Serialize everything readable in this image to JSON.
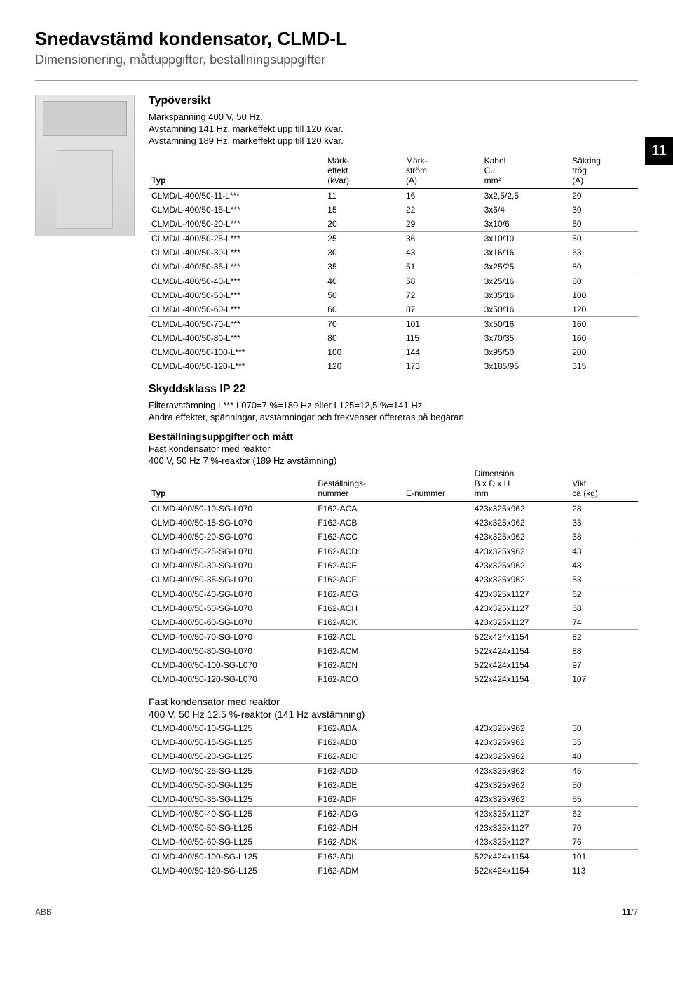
{
  "title": "Snedavstämd kondensator, CLMD-L",
  "subtitle": "Dimensionering, måttuppgifter, beställningsuppgifter",
  "overview_heading": "Typöversikt",
  "overview_lines": [
    "Märkspänning 400 V, 50 Hz.",
    "Avstämning 141 Hz, märkeffekt upp till 120 kvar.",
    "Avstämning 189 Hz, märkeffekt upp till 120 kvar."
  ],
  "chapter": "11",
  "table1": {
    "headers": {
      "c1a": "",
      "c1b": "",
      "c1c": "Typ",
      "c2a": "Märk-",
      "c2b": "effekt",
      "c2c": "(kvar)",
      "c3a": "Märk-",
      "c3b": "ström",
      "c3c": "(A)",
      "c4a": "Kabel",
      "c4b": "Cu",
      "c4c": "mm²",
      "c5a": "Säkring",
      "c5b": "trög",
      "c5c": "(A)"
    },
    "groups": [
      [
        [
          "CLMD/L-400/50-11-L***",
          "11",
          "16",
          "3x2,5/2,5",
          "20"
        ],
        [
          "CLMD/L-400/50-15-L***",
          "15",
          "22",
          "3x6/4",
          "30"
        ],
        [
          "CLMD/L-400/50-20-L***",
          "20",
          "29",
          "3x10/6",
          "50"
        ]
      ],
      [
        [
          "CLMD/L-400/50-25-L***",
          "25",
          "36",
          "3x10/10",
          "50"
        ],
        [
          "CLMD/L-400/50-30-L***",
          "30",
          "43",
          "3x16/16",
          "63"
        ],
        [
          "CLMD/L-400/50-35-L***",
          "35",
          "51",
          "3x25/25",
          "80"
        ]
      ],
      [
        [
          "CLMD/L-400/50-40-L***",
          "40",
          "58",
          "3x25/16",
          "80"
        ],
        [
          "CLMD/L-400/50-50-L***",
          "50",
          "72",
          "3x35/16",
          "100"
        ],
        [
          "CLMD/L-400/50-60-L***",
          "60",
          "87",
          "3x50/16",
          "120"
        ]
      ],
      [
        [
          "CLMD/L-400/50-70-L***",
          "70",
          "101",
          "3x50/16",
          "160"
        ],
        [
          "CLMD/L-400/50-80-L***",
          "80",
          "115",
          "3x70/35",
          "160"
        ],
        [
          "CLMD/L-400/50-100-L***",
          "100",
          "144",
          "3x95/50",
          "200"
        ],
        [
          "CLMD/L-400/50-120-L***",
          "120",
          "173",
          "3x185/95",
          "315"
        ]
      ]
    ]
  },
  "ip_heading": "Skyddsklass IP 22",
  "ip_line1": "Filteravstämning L*** L070=7 %=189 Hz eller L125=12,5 %=141 Hz",
  "ip_line2": "Andra effekter, spänningar, avstämningar och frekvenser offereras på begäran.",
  "order_heading": "Beställningsuppgifter och mått",
  "order_sub1": "Fast kondensator med reaktor",
  "order_sub2": "400 V, 50 Hz 7 %-reaktor (189 Hz avstämning)",
  "table2": {
    "headers": {
      "c1a": "",
      "c1b": "",
      "c1c": "Typ",
      "c2a": "",
      "c2b": "Beställnings-",
      "c2c": "nummer",
      "c3a": "",
      "c3b": "",
      "c3c": "E-nummer",
      "c4a": "Dimension",
      "c4b": "B x D x H",
      "c4c": "mm",
      "c5a": "",
      "c5b": "Vikt",
      "c5c": "ca (kg)"
    },
    "groups": [
      [
        [
          "CLMD-400/50-10-SG-L070",
          "F162-ACA",
          "",
          "423x325x962",
          "28"
        ],
        [
          "CLMD-400/50-15-SG-L070",
          "F162-ACB",
          "",
          "423x325x962",
          "33"
        ],
        [
          "CLMD-400/50-20-SG-L070",
          "F162-ACC",
          "",
          "423x325x962",
          "38"
        ]
      ],
      [
        [
          "CLMD-400/50-25-SG-L070",
          "F162-ACD",
          "",
          "423x325x962",
          "43"
        ],
        [
          "CLMD-400/50-30-SG-L070",
          "F162-ACE",
          "",
          "423x325x962",
          "48"
        ],
        [
          "CLMD-400/50-35-SG-L070",
          "F162-ACF",
          "",
          "423x325x962",
          "53"
        ]
      ],
      [
        [
          "CLMD-400/50-40-SG-L070",
          "F162-ACG",
          "",
          "423x325x1127",
          "62"
        ],
        [
          "CLMD-400/50-50-SG-L070",
          "F162-ACH",
          "",
          "423x325x1127",
          "68"
        ],
        [
          "CLMD-400/50-60-SG-L070",
          "F162-ACK",
          "",
          "423x325x1127",
          "74"
        ]
      ],
      [
        [
          "CLMD-400/50-70-SG-L070",
          "F162-ACL",
          "",
          "522x424x1154",
          "82"
        ],
        [
          "CLMD-400/50-80-SG-L070",
          "F162-ACM",
          "",
          "522x424x1154",
          "88"
        ],
        [
          "CLMD-400/50-100-SG-L070",
          "F162-ACN",
          "",
          "522x424x1154",
          "97"
        ],
        [
          "CLMD-400/50-120-SG-L070",
          "F162-ACO",
          "",
          "522x424x1154",
          "107"
        ]
      ]
    ]
  },
  "order2_sub1": "Fast kondensator med reaktor",
  "order2_sub2": "400 V, 50 Hz 12.5 %-reaktor (141 Hz avstämning)",
  "table3": {
    "groups": [
      [
        [
          "CLMD-400/50-10-SG-L125",
          "F162-ADA",
          "",
          "423x325x962",
          "30"
        ],
        [
          "CLMD-400/50-15-SG-L125",
          "F162-ADB",
          "",
          "423x325x962",
          "35"
        ],
        [
          "CLMD-400/50-20-SG-L125",
          "F162-ADC",
          "",
          "423x325x962",
          "40"
        ]
      ],
      [
        [
          "CLMD-400/50-25-SG-L125",
          "F162-ADD",
          "",
          "423x325x962",
          "45"
        ],
        [
          "CLMD-400/50-30-SG-L125",
          "F162-ADE",
          "",
          "423x325x962",
          "50"
        ],
        [
          "CLMD-400/50-35-SG-L125",
          "F162-ADF",
          "",
          "423x325x962",
          "55"
        ]
      ],
      [
        [
          "CLMD-400/50-40-SG-L125",
          "F162-ADG",
          "",
          "423x325x1127",
          "62"
        ],
        [
          "CLMD-400/50-50-SG-L125",
          "F162-ADH",
          "",
          "423x325x1127",
          "70"
        ],
        [
          "CLMD-400/50-60-SG-L125",
          "F162-ADK",
          "",
          "423x325x1127",
          "76"
        ]
      ],
      [
        [
          "CLMD-400/50-100-SG-L125",
          "F162-ADL",
          "",
          "522x424x1154",
          "101"
        ],
        [
          "CLMD-400/50-120-SG-L125",
          "F162-ADM",
          "",
          "522x424x1154",
          "113"
        ]
      ]
    ]
  },
  "footer_left": "ABB",
  "footer_right_chapter": "11",
  "footer_right_page": "/7"
}
